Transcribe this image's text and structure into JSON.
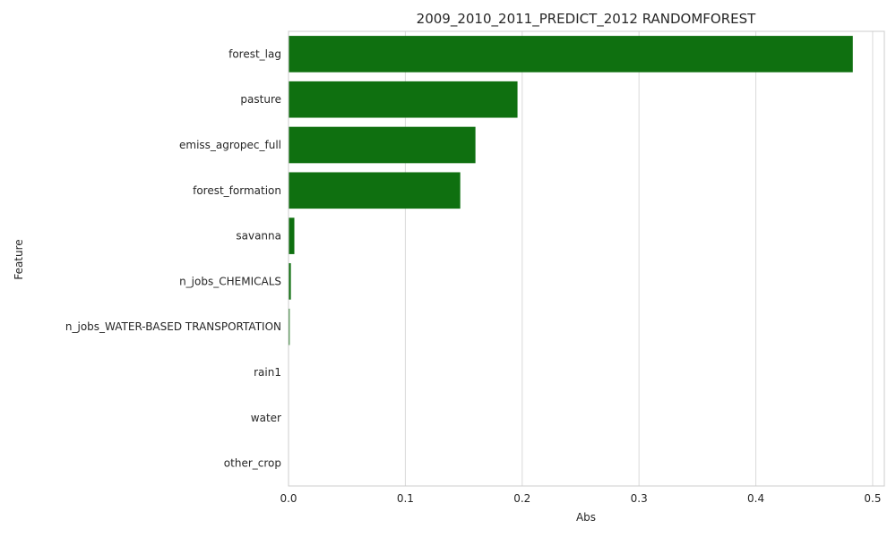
{
  "chart_data": {
    "type": "bar",
    "orientation": "horizontal",
    "title": "2009_2010_2011_PREDICT_2012 RANDOMFOREST",
    "xlabel": "Abs",
    "ylabel": "Feature",
    "xlim": [
      0,
      0.51
    ],
    "xticks": [
      0.0,
      0.1,
      0.2,
      0.3,
      0.4,
      0.5
    ],
    "xtick_labels": [
      "0.0",
      "0.1",
      "0.2",
      "0.3",
      "0.4",
      "0.5"
    ],
    "grid": "x",
    "bar_color": "#0f7010",
    "categories": [
      "forest_lag",
      "pasture",
      "emiss_agropec_full",
      "forest_formation",
      "savanna",
      "n_jobs_CHEMICALS",
      "n_jobs_WATER-BASED TRANSPORTATION",
      "rain1",
      "water",
      "other_crop"
    ],
    "values": [
      0.483,
      0.196,
      0.16,
      0.147,
      0.005,
      0.002,
      0.001,
      0.0,
      0.0,
      0.0
    ]
  }
}
